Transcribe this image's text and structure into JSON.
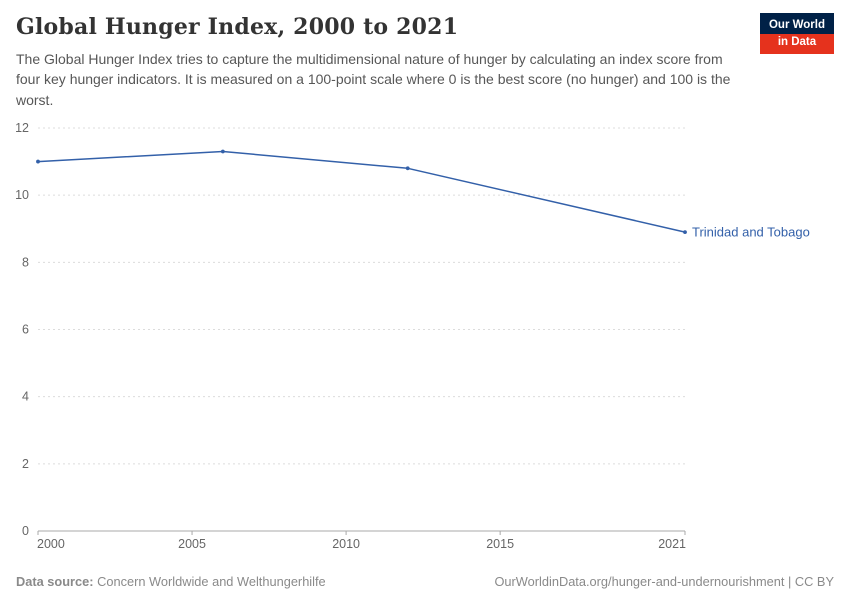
{
  "header": {
    "title": "Global Hunger Index, 2000 to 2021",
    "subtitle": "The Global Hunger Index tries to capture the multidimensional nature of hunger by calculating an index score from four key hunger indicators. It is measured on a 100-point scale where 0 is the best score (no hunger) and 100 is the worst.",
    "logo": {
      "line1": "Our World",
      "line2": "in Data"
    }
  },
  "chart_data": {
    "type": "line",
    "title": "Global Hunger Index, 2000 to 2021",
    "xlabel": "",
    "ylabel": "",
    "xlim": [
      2000,
      2021
    ],
    "ylim": [
      0,
      12
    ],
    "xticks": [
      2000,
      2005,
      2010,
      2015,
      2021
    ],
    "yticks": [
      0,
      2,
      4,
      6,
      8,
      10,
      12
    ],
    "grid": "dashed-horizontal",
    "legend_position": "end-of-line-label",
    "end_label": "Trinidad and Tobago",
    "series": [
      {
        "name": "Trinidad and Tobago",
        "color": "#3360a9",
        "x": [
          2000,
          2006,
          2012,
          2021
        ],
        "values": [
          11.0,
          11.3,
          10.8,
          8.9
        ]
      }
    ]
  },
  "footer": {
    "source_label": "Data source:",
    "source_value": "Concern Worldwide and Welthungerhilfe",
    "attribution": "OurWorldinData.org/hunger-and-undernourishment | CC BY"
  },
  "colors": {
    "line": "#3360a9",
    "grid": "#dcdcdc",
    "axis": "#a8a8a8",
    "axis_text": "#666666",
    "logo_bg": "#002147",
    "logo_accent": "#e5321d"
  }
}
